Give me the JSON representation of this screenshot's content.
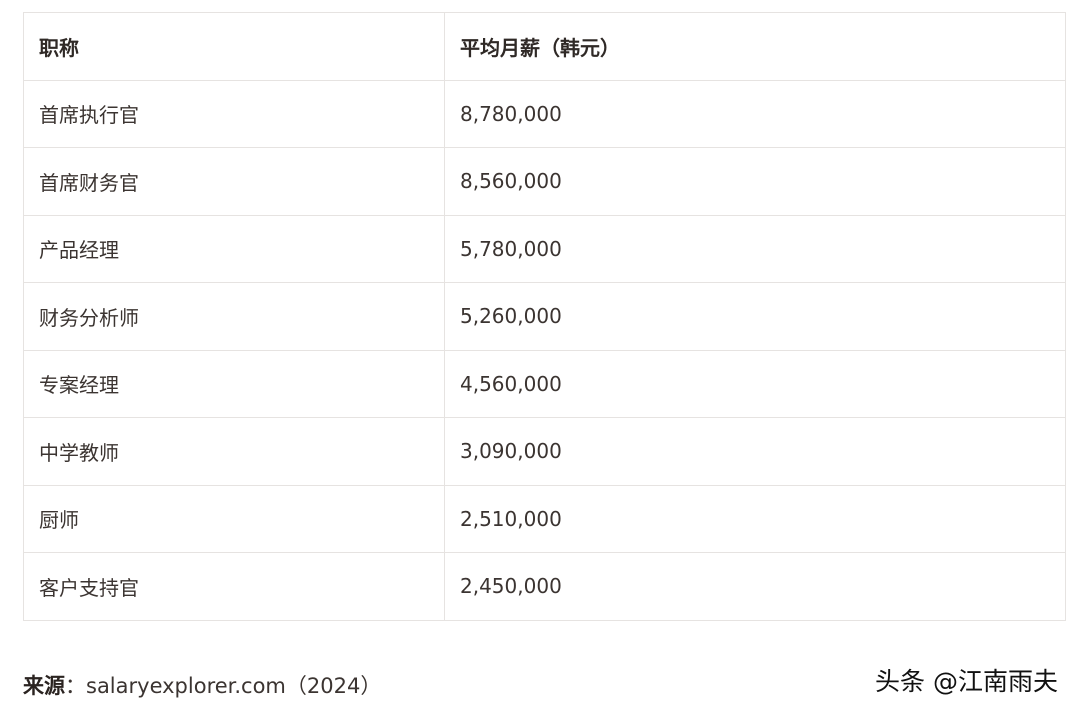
{
  "table": {
    "headers": [
      "职称",
      "平均月薪（韩元）"
    ],
    "rows": [
      [
        "首席执行官",
        "8,780,000"
      ],
      [
        "首席财务官",
        "8,560,000"
      ],
      [
        "产品经理",
        "5,780,000"
      ],
      [
        "财务分析师",
        "5,260,000"
      ],
      [
        "专案经理",
        "4,560,000"
      ],
      [
        "中学教师",
        "3,090,000"
      ],
      [
        "厨师",
        "2,510,000"
      ],
      [
        "客户支持官",
        "2,450,000"
      ]
    ]
  },
  "source": {
    "label": "来源",
    "separator": "：",
    "text": "salaryexplorer.com（2024）"
  },
  "watermark": "头条 @江南雨夫"
}
